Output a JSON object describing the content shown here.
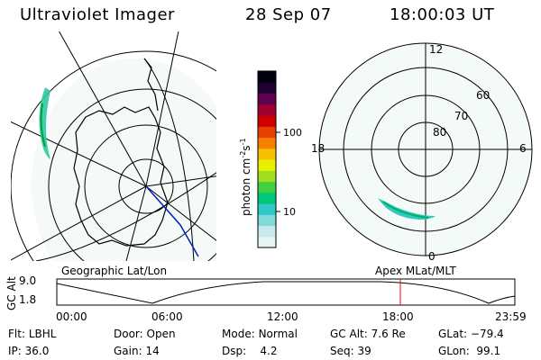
{
  "header": {
    "title": "Ultraviolet Imager",
    "date": "28 Sep 07",
    "time": "18:00:03 UT"
  },
  "left_map": {
    "label": "Geographic Lat/Lon"
  },
  "right_map": {
    "label": "Apex MLat/MLT",
    "lat_labels": [
      "80",
      "70",
      "60"
    ],
    "mlt_labels": {
      "top": "12",
      "bottom": "0",
      "left": "18",
      "right": "6"
    }
  },
  "colorbar": {
    "label": "photon cm",
    "label_sup1": "-2",
    "label_mid": "s",
    "label_sup2": "-1",
    "ticks": [
      "100",
      "10"
    ],
    "scale": "log",
    "colors": [
      "#e8f4f4",
      "#c8eaec",
      "#7fdad8",
      "#30c8c8",
      "#00c878",
      "#40d040",
      "#a0e020",
      "#e8f000",
      "#f8c000",
      "#f88000",
      "#e84000",
      "#d00000",
      "#a00030",
      "#600050",
      "#200030",
      "#000010"
    ]
  },
  "altitude_plot": {
    "ylabel": "GC Alt",
    "yticks": [
      "9.0",
      "1.8"
    ],
    "xticks": [
      "00:00",
      "06:00",
      "12:00",
      "18:00",
      "23:59"
    ],
    "current_time_marker": "18:00"
  },
  "status": {
    "flt_label": "Flt:",
    "flt_value": "LBHL",
    "ip_label": "IP:",
    "ip_value": "36.0",
    "door_label": "Door:",
    "door_value": "Open",
    "gain_label": "Gain:",
    "gain_value": "14",
    "mode_label": "Mode:",
    "mode_value": "Normal",
    "dsp_label": "Dsp:",
    "dsp_value": "4.2",
    "gcalt_label": "GC Alt:",
    "gcalt_value": "7.6 Re",
    "seq_label": "Seq:",
    "seq_value": "39",
    "glat_label": "GLat:",
    "glat_value": "−79.4",
    "glon_label": "GLon:",
    "glon_value": "99.1"
  }
}
